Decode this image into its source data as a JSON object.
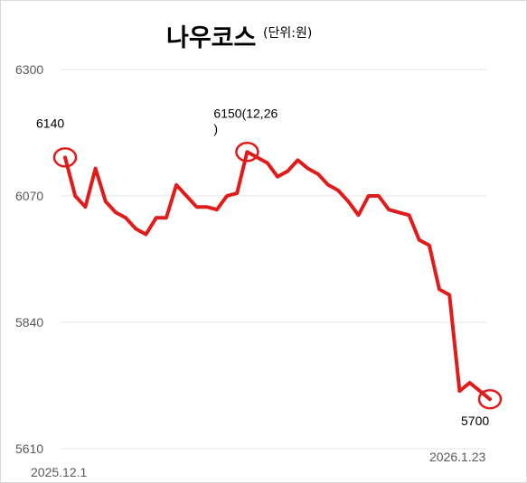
{
  "chart_data": {
    "type": "line",
    "title": "나우코스",
    "unit_label": "(단위:원)",
    "ylim": [
      5610,
      6300
    ],
    "yticks": [
      6300,
      6070,
      5840,
      5610
    ],
    "grid": true,
    "x_start_label": "2025.12.1",
    "x_end_label": "2026.1.23",
    "series": [
      {
        "color": "#e11a1a",
        "values": [
          6140,
          6070,
          6050,
          6120,
          6060,
          6040,
          6030,
          6010,
          6000,
          6030,
          6030,
          6090,
          6070,
          6050,
          6050,
          6045,
          6070,
          6075,
          6150,
          6140,
          6130,
          6105,
          6115,
          6135,
          6120,
          6110,
          6090,
          6080,
          6060,
          6035,
          6070,
          6070,
          6045,
          6040,
          6035,
          5990,
          5980,
          5900,
          5890,
          5715,
          5730,
          5715,
          5700
        ]
      }
    ],
    "annotations": [
      {
        "text": "6140",
        "index": 0
      },
      {
        "text": "6150(12,26\n)",
        "index": 18
      },
      {
        "text": "5700",
        "index": 42
      }
    ]
  }
}
